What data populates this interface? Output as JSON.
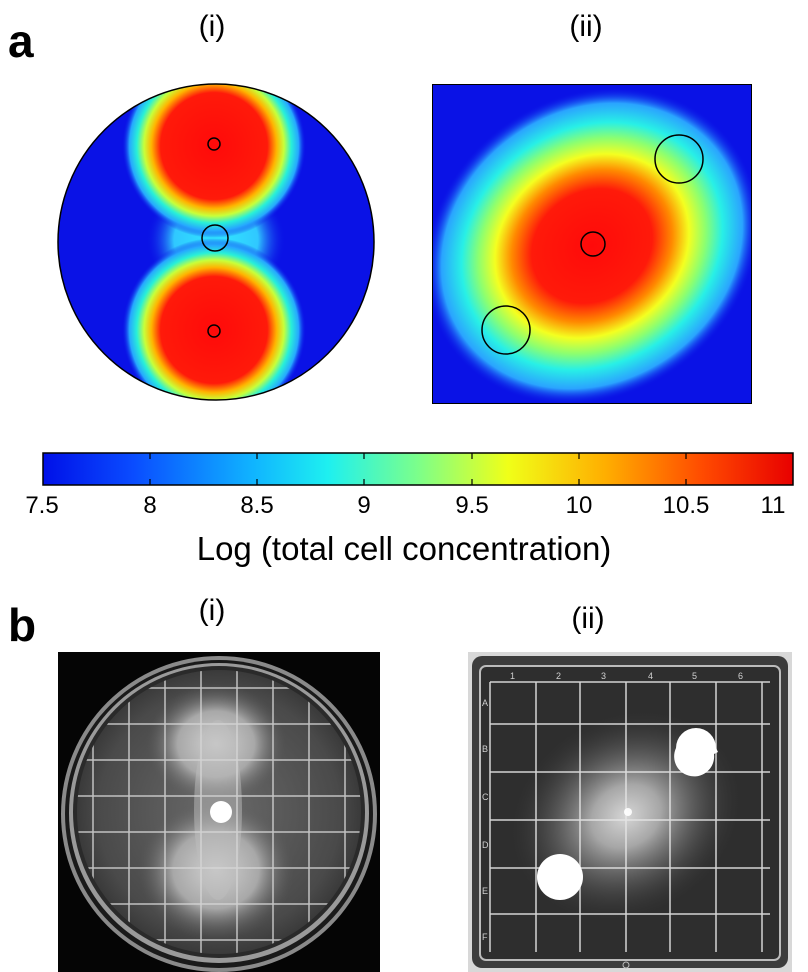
{
  "panel_a": {
    "letter": "a",
    "sub_i": "(i)",
    "sub_ii": "(ii)"
  },
  "colorbar": {
    "ticks": [
      "7.5",
      "8",
      "8.5",
      "9",
      "9.5",
      "10",
      "10.5",
      "11"
    ],
    "label": "Log (total cell concentration)"
  },
  "panel_b": {
    "letter": "b",
    "sub_i": "(i)",
    "sub_ii": "(ii)"
  },
  "plate_ii_labels": {
    "columns": [
      "1",
      "2",
      "3",
      "4",
      "5",
      "6"
    ],
    "rows": [
      "A",
      "B",
      "C",
      "D",
      "E",
      "F"
    ]
  },
  "colors": {
    "background_blue": "#0a12e6",
    "high": "#ff1a12"
  }
}
